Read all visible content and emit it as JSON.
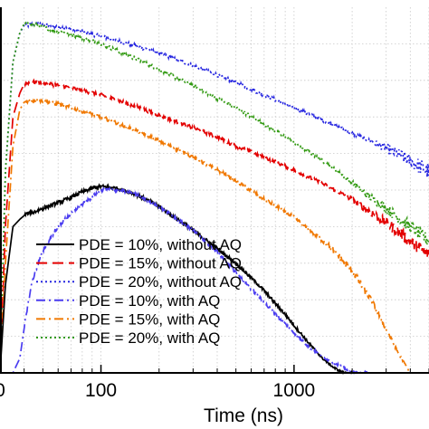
{
  "chart_data": {
    "type": "line",
    "xlabel": "Time (ns)",
    "x_scale": "log",
    "xlim": [
      30,
      5000
    ],
    "ylim": [
      0,
      1
    ],
    "grid": true,
    "x_ticks": [
      {
        "value": 100,
        "label": "100"
      },
      {
        "value": 1000,
        "label": "1000"
      }
    ],
    "x_edge_label": "0",
    "legend_position": "bottom-left",
    "series": [
      {
        "name": "PDE = 10%, without AQ",
        "color": "#000000",
        "dash": "solid",
        "x": [
          30,
          32,
          35,
          38,
          41,
          45,
          50,
          60,
          70,
          80,
          90,
          100,
          120,
          150,
          200,
          300,
          400,
          500,
          600,
          700,
          800,
          900,
          1000,
          1200,
          1400,
          1600,
          1800,
          2000
        ],
        "y": [
          0.0,
          0.24,
          0.4,
          0.42,
          0.435,
          0.44,
          0.45,
          0.465,
          0.48,
          0.495,
          0.505,
          0.51,
          0.505,
          0.49,
          0.455,
          0.39,
          0.34,
          0.3,
          0.26,
          0.225,
          0.19,
          0.16,
          0.13,
          0.08,
          0.04,
          0.015,
          0.0,
          0.0
        ],
        "noise_from": 600
      },
      {
        "name": "PDE = 15%, without AQ",
        "color": "#e30000",
        "dash": "dash",
        "x": [
          30,
          32,
          35,
          38,
          40,
          43,
          47,
          55,
          70,
          100,
          150,
          200,
          300,
          400,
          500,
          700,
          1000,
          1500,
          2000,
          2500,
          3000,
          3500,
          4000,
          5000
        ],
        "y": [
          0.0,
          0.4,
          0.7,
          0.765,
          0.79,
          0.795,
          0.795,
          0.79,
          0.78,
          0.76,
          0.73,
          0.705,
          0.67,
          0.645,
          0.62,
          0.59,
          0.555,
          0.51,
          0.475,
          0.44,
          0.41,
          0.385,
          0.36,
          0.32
        ],
        "noise_from": 1800
      },
      {
        "name": "PDE = 20%, without AQ",
        "color": "#2626e0",
        "dash": "dot",
        "x": [
          30,
          32,
          35,
          38,
          40,
          43,
          47,
          55,
          70,
          100,
          150,
          200,
          300,
          500,
          700,
          1000,
          1500,
          2000,
          3000,
          4000,
          5000
        ],
        "y": [
          0.0,
          0.55,
          0.85,
          0.93,
          0.95,
          0.952,
          0.955,
          0.95,
          0.94,
          0.92,
          0.895,
          0.875,
          0.84,
          0.795,
          0.76,
          0.725,
          0.685,
          0.655,
          0.615,
          0.58,
          0.55
        ],
        "noise_from": 2500
      },
      {
        "name": "PDE = 10%, with AQ",
        "color": "#4a3cf0",
        "dash": "dashdot",
        "x": [
          30,
          35,
          38,
          41,
          44,
          48,
          52,
          58,
          65,
          75,
          85,
          100,
          120,
          150,
          200,
          300,
          400,
          500,
          600,
          800,
          1000,
          1200,
          1500,
          1800,
          2000,
          2500
        ],
        "y": [
          0.0,
          0.0,
          0.04,
          0.16,
          0.25,
          0.31,
          0.35,
          0.39,
          0.42,
          0.45,
          0.47,
          0.5,
          0.5,
          0.49,
          0.455,
          0.39,
          0.33,
          0.275,
          0.23,
          0.16,
          0.11,
          0.07,
          0.035,
          0.015,
          0.0,
          0.0
        ],
        "noise_from": 500
      },
      {
        "name": "PDE = 15%, with AQ",
        "color": "#f07800",
        "dash": "dashdot",
        "x": [
          30,
          32,
          35,
          38,
          40,
          43,
          47,
          55,
          70,
          100,
          150,
          200,
          300,
          400,
          500,
          700,
          1000,
          1500,
          2000,
          2500,
          3000,
          3500,
          4000
        ],
        "y": [
          0.0,
          0.3,
          0.62,
          0.72,
          0.74,
          0.745,
          0.745,
          0.74,
          0.725,
          0.7,
          0.665,
          0.635,
          0.59,
          0.555,
          0.525,
          0.475,
          0.425,
          0.35,
          0.28,
          0.2,
          0.12,
          0.05,
          0.0
        ],
        "noise_from": 1200
      },
      {
        "name": "PDE = 20%, with AQ",
        "color": "#329a12",
        "dash": "dot",
        "x": [
          30,
          32,
          35,
          38,
          40,
          43,
          47,
          55,
          70,
          100,
          150,
          200,
          300,
          500,
          700,
          1000,
          1500,
          2000,
          2500,
          3000,
          4000,
          5000
        ],
        "y": [
          0.0,
          0.55,
          0.85,
          0.93,
          0.955,
          0.955,
          0.95,
          0.94,
          0.925,
          0.9,
          0.86,
          0.83,
          0.785,
          0.725,
          0.68,
          0.63,
          0.57,
          0.52,
          0.48,
          0.45,
          0.4,
          0.36
        ],
        "noise_from": 2000
      }
    ]
  }
}
